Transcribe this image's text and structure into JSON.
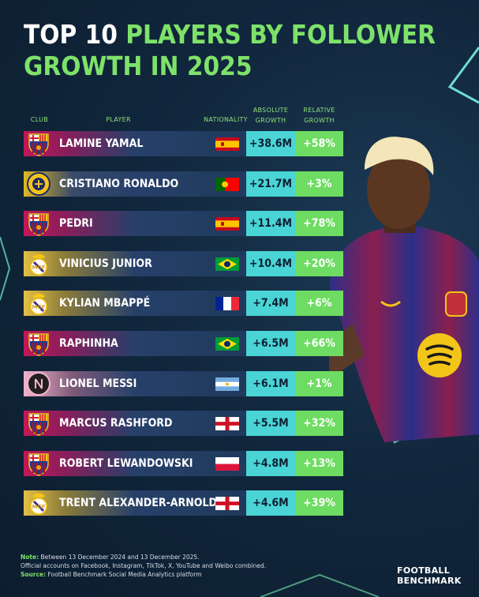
{
  "title": {
    "part1": "TOP 10 ",
    "part2": "PLAYERS BY FOLLOWER",
    "part3": "GROWTH IN 2025"
  },
  "headers": {
    "club": "CLUB",
    "player": "PLAYER",
    "nationality": "NATIONALITY",
    "absolute": [
      "ABSOLUTE",
      "GROWTH"
    ],
    "relative": [
      "RELATIVE",
      "GROWTH"
    ]
  },
  "colors": {
    "absolute_cell": "#4ad4d6",
    "relative_cell": "#6edc62",
    "title_highlight": "#7ee26a"
  },
  "chart_data": {
    "type": "table",
    "columns": [
      "CLUB",
      "PLAYER",
      "NATIONALITY",
      "ABSOLUTE GROWTH",
      "RELATIVE GROWTH"
    ],
    "rows": [
      {
        "player": "LAMINE YAMAL",
        "club_icon": "fc-barcelona-crest",
        "nationality_icon": "spain-flag",
        "absolute": "+38.6M",
        "relative": "+58%"
      },
      {
        "player": "CRISTIANO RONALDO",
        "club_icon": "al-nassr-crest",
        "nationality_icon": "portugal-flag",
        "absolute": "+21.7M",
        "relative": "+3%"
      },
      {
        "player": "PEDRI",
        "club_icon": "fc-barcelona-crest",
        "nationality_icon": "spain-flag",
        "absolute": "+11.4M",
        "relative": "+78%"
      },
      {
        "player": "VINICIUS JUNIOR",
        "club_icon": "real-madrid-crest",
        "nationality_icon": "brazil-flag",
        "absolute": "+10.4M",
        "relative": "+20%"
      },
      {
        "player": "KYLIAN MBAPPÉ",
        "club_icon": "real-madrid-crest",
        "nationality_icon": "france-flag",
        "absolute": "+7.4M",
        "relative": "+6%"
      },
      {
        "player": "RAPHINHA",
        "club_icon": "fc-barcelona-crest",
        "nationality_icon": "brazil-flag",
        "absolute": "+6.5M",
        "relative": "+66%"
      },
      {
        "player": "LIONEL MESSI",
        "club_icon": "inter-miami-crest",
        "nationality_icon": "argentina-flag",
        "absolute": "+6.1M",
        "relative": "+1%"
      },
      {
        "player": "MARCUS RASHFORD",
        "club_icon": "fc-barcelona-crest",
        "nationality_icon": "england-flag",
        "absolute": "+5.5M",
        "relative": "+32%"
      },
      {
        "player": "ROBERT LEWANDOWSKI",
        "club_icon": "fc-barcelona-crest",
        "nationality_icon": "poland-flag",
        "absolute": "+4.8M",
        "relative": "+13%"
      },
      {
        "player": "TRENT ALEXANDER-ARNOLD",
        "club_icon": "real-madrid-crest",
        "nationality_icon": "england-flag",
        "absolute": "+4.6M",
        "relative": "+39%"
      }
    ]
  },
  "notes": {
    "note_label": "Note:",
    "note_text": " Between 13 December 2024 and 13 December 2025.",
    "line2": "Official accounts on Facebook, Instagram, TikTok, X, YouTube and Weibo combined.",
    "source_label": "Source:",
    "source_text": " Football Benchmark Social Media Analytics platform"
  },
  "brand": {
    "line1": "FOOTBALL",
    "line2": "BENCHMARK"
  }
}
